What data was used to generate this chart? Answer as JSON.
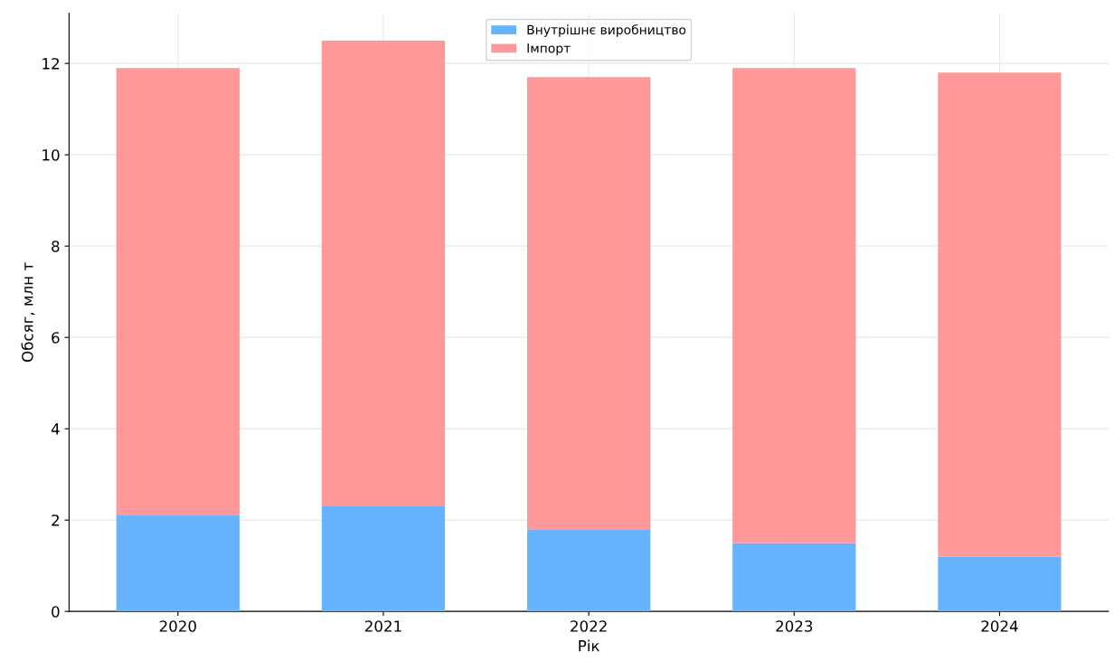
{
  "chart_data": {
    "type": "bar",
    "stacked": true,
    "xlabel": "Рік",
    "ylabel": "Обсяг, млн т",
    "categories": [
      "2020",
      "2021",
      "2022",
      "2023",
      "2024"
    ],
    "series": [
      {
        "name": "Внутрішнє виробництво",
        "color": "#66b3ff",
        "values": [
          2.1,
          2.3,
          1.8,
          1.5,
          1.2
        ]
      },
      {
        "name": "Імпорт",
        "color": "#ff9999",
        "values": [
          9.8,
          10.2,
          9.9,
          10.4,
          10.6
        ]
      }
    ],
    "ylim": [
      0,
      13.1
    ],
    "yticks": [
      0,
      2,
      4,
      6,
      8,
      10,
      12
    ],
    "grid": true,
    "legend": "top"
  }
}
